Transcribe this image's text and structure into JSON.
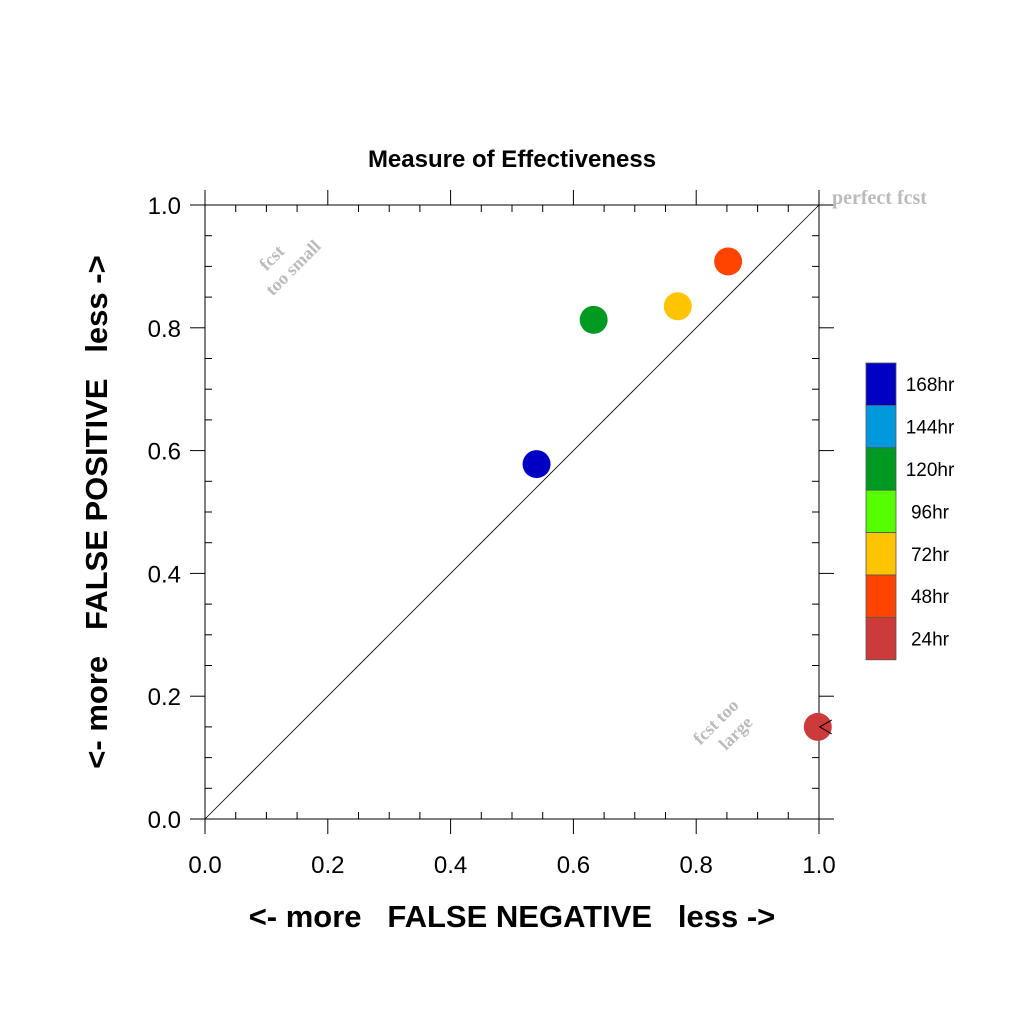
{
  "chart_data": {
    "type": "scatter",
    "title": "Measure of Effectiveness",
    "xlabel": "<- more   FALSE NEGATIVE   less ->",
    "ylabel": "<- more   FALSE POSITIVE   less ->",
    "xlim": [
      0,
      1
    ],
    "ylim": [
      0,
      1
    ],
    "x_ticks": [
      "0.0",
      "0.2",
      "0.4",
      "0.6",
      "0.8",
      "1.0"
    ],
    "y_ticks": [
      "0.0",
      "0.2",
      "0.4",
      "0.6",
      "0.8",
      "1.0"
    ],
    "grid": false,
    "diagonal_line": true,
    "annotations": {
      "perfect": "perfect fcst",
      "too_small_1": "fcst",
      "too_small_2": "too small",
      "too_large_1": "fcst too",
      "too_large_2": "large"
    },
    "legend": {
      "placement": "right",
      "entries": [
        {
          "label": "168hr",
          "color": "#0000c4"
        },
        {
          "label": "144hr",
          "color": "#0099dd"
        },
        {
          "label": "120hr",
          "color": "#009922"
        },
        {
          "label": "96hr",
          "color": "#55ff00"
        },
        {
          "label": "72hr",
          "color": "#ffc400"
        },
        {
          "label": "48hr",
          "color": "#ff4400"
        },
        {
          "label": "24hr",
          "color": "#cc3a3a"
        }
      ]
    },
    "points": [
      {
        "lead": "168hr",
        "x": 0.54,
        "y": 0.578,
        "color": "#0000c4"
      },
      {
        "lead": "120hr",
        "x": 0.633,
        "y": 0.813,
        "color": "#009922"
      },
      {
        "lead": "72hr",
        "x": 0.77,
        "y": 0.835,
        "color": "#ffc400"
      },
      {
        "lead": "48hr",
        "x": 0.852,
        "y": 0.908,
        "color": "#ff4400"
      },
      {
        "lead": "24hr",
        "x": 0.998,
        "y": 0.15,
        "color": "#cc3a3a"
      }
    ]
  }
}
